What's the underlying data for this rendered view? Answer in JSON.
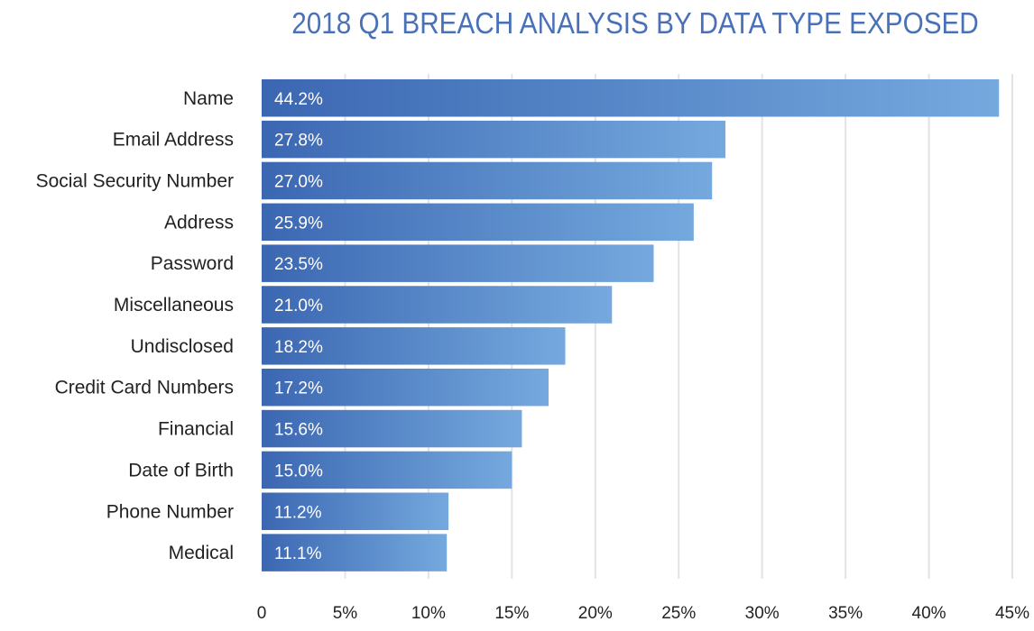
{
  "chart_data": {
    "type": "bar",
    "orientation": "horizontal",
    "title": "2018 Q1 BREACH ANALYSIS BY DATA TYPE EXPOSED",
    "xlabel": "",
    "ylabel": "",
    "categories": [
      "Name",
      "Email Address",
      "Social Security Number",
      "Address",
      "Password",
      "Miscellaneous",
      "Undisclosed",
      "Credit Card Numbers",
      "Financial",
      "Date of Birth",
      "Phone Number",
      "Medical"
    ],
    "values": [
      44.2,
      27.8,
      27.0,
      25.9,
      23.5,
      21.0,
      18.2,
      17.2,
      15.6,
      15.0,
      11.2,
      11.1
    ],
    "value_labels": [
      "44.2%",
      "27.8%",
      "27.0%",
      "25.9%",
      "23.5%",
      "21.0%",
      "18.2%",
      "17.2%",
      "15.6%",
      "15.0%",
      "11.2%",
      "11.1%"
    ],
    "xlim": [
      0,
      45
    ],
    "xticks": [
      0,
      5,
      10,
      15,
      20,
      25,
      30,
      35,
      40,
      45
    ],
    "xtick_labels": [
      "0",
      "5%",
      "10%",
      "15%",
      "20%",
      "25%",
      "30%",
      "35%",
      "40%",
      "45%"
    ],
    "grid": true,
    "legend": "none",
    "colors": {
      "bar_start": "#3b67b2",
      "bar_end": "#75a9de",
      "title": "#4a71b7"
    }
  }
}
